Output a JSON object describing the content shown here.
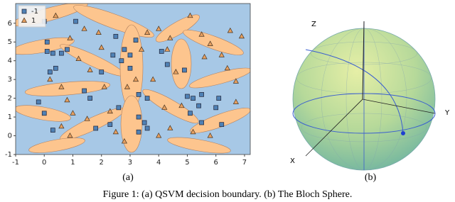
{
  "chart_data": {
    "type": "scatter",
    "xlim": [
      -1,
      7.2
    ],
    "ylim": [
      -1,
      7.05
    ],
    "xticks": [
      -1,
      0,
      1,
      2,
      3,
      4,
      5,
      6,
      7
    ],
    "yticks": [
      -1,
      0,
      1,
      2,
      3,
      4,
      5,
      6
    ],
    "legend": "upper-left",
    "series": [
      {
        "name": "-1",
        "color": "#4f81b5",
        "marker": "square",
        "x": [
          0.0,
          0.1,
          0.1,
          0.3,
          0.6,
          0.4,
          0.2,
          0.8,
          -0.2,
          0.0,
          0.3,
          1.1,
          1.6,
          1.4,
          1.8,
          2.3,
          2.6,
          2.4,
          2.8,
          2.7,
          3.0,
          3.2,
          3.0,
          3.3,
          3.6,
          3.3,
          3.5,
          3.6,
          3.3,
          2.5,
          4.1,
          4.3,
          5.0,
          5.2,
          5.5,
          5.1,
          5.4,
          5.5,
          6.0,
          6.1,
          6.2,
          4.9,
          2.0
        ],
        "values": [
          6.1,
          5.0,
          4.5,
          4.4,
          4.4,
          3.6,
          3.4,
          4.6,
          1.8,
          1.2,
          0.3,
          6.1,
          2.0,
          2.4,
          0.4,
          0.6,
          1.5,
          4.3,
          4.6,
          4.0,
          4.3,
          5.1,
          3.6,
          2.2,
          2.0,
          1.0,
          0.7,
          0.4,
          0.2,
          5.3,
          4.5,
          3.8,
          2.1,
          2.0,
          2.2,
          1.2,
          1.6,
          0.7,
          1.5,
          2.0,
          0.6,
          3.5,
          3.4
        ]
      },
      {
        "name": "1",
        "color": "#e8a060",
        "marker": "triangle",
        "x": [
          0.4,
          0.9,
          1.2,
          1.4,
          1.9,
          2.0,
          1.6,
          0.6,
          0.8,
          1.0,
          1.5,
          0.6,
          0.9,
          2.1,
          2.3,
          2.5,
          2.9,
          3.8,
          3.6,
          3.4,
          4.0,
          4.4,
          4.3,
          4.6,
          4.8,
          4.2,
          4.4,
          4.0,
          2.8,
          5.1,
          5.5,
          5.8,
          5.6,
          6.2,
          6.4,
          6.7,
          6.7,
          6.9,
          6.5,
          5.8,
          5.2,
          3.2,
          0.2
        ],
        "values": [
          6.4,
          5.2,
          4.1,
          5.7,
          5.5,
          4.7,
          3.5,
          2.6,
          1.9,
          1.2,
          0.9,
          0.5,
          0.0,
          2.6,
          1.3,
          0.2,
          2.6,
          3.0,
          5.5,
          4.6,
          5.7,
          5.2,
          4.6,
          3.4,
          1.6,
          1.5,
          0.4,
          0.0,
          -0.3,
          6.4,
          5.4,
          4.9,
          4.2,
          4.3,
          3.6,
          2.9,
          1.8,
          5.3,
          5.6,
          0.0,
          0.2,
          3.0,
          3.0
        ]
      }
    ]
  },
  "bloch": {
    "z_label": "Z",
    "y_label": "Y",
    "x_label": "X"
  },
  "panel_labels": [
    "(a)",
    "(b)"
  ],
  "caption": "Figure 1: (a) QSVM decision boundary. (b) The Bloch Sphere."
}
